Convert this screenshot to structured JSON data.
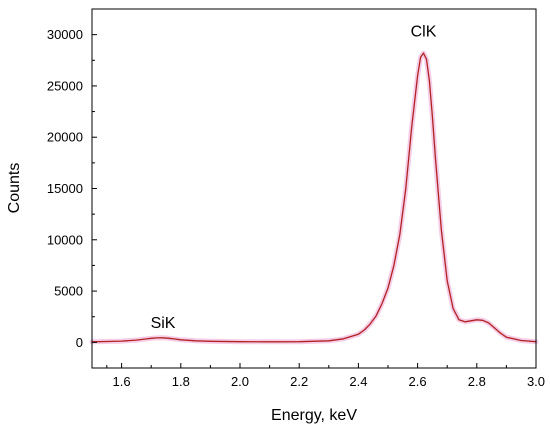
{
  "chart_data": {
    "type": "line",
    "title": "",
    "xlabel": "Energy, keV",
    "ylabel": "Counts",
    "xlim": [
      1.5,
      3.0
    ],
    "ylim": [
      -2500,
      32500
    ],
    "x_ticks": [
      1.6,
      1.8,
      2.0,
      2.2,
      2.4,
      2.6,
      2.8,
      3.0
    ],
    "x_tick_labels": [
      "1.6",
      "1.8",
      "2.0",
      "2.2",
      "2.4",
      "2.6",
      "2.8",
      "3.0"
    ],
    "y_ticks": [
      0,
      5000,
      10000,
      15000,
      20000,
      25000,
      30000
    ],
    "y_tick_labels": [
      "0",
      "5000",
      "10000",
      "15000",
      "20000",
      "25000",
      "30000"
    ],
    "grid": false,
    "legend": "none",
    "line_color": "#b22222",
    "glow_color": "#f4c8e4",
    "annotations": [
      {
        "text": "SiK",
        "x": 1.74,
        "y": 1400
      },
      {
        "text": "ClK",
        "x": 2.62,
        "y": 29800
      }
    ],
    "series": [
      {
        "x": [
          1.5,
          1.55,
          1.6,
          1.65,
          1.68,
          1.7,
          1.72,
          1.74,
          1.76,
          1.78,
          1.8,
          1.85,
          1.9,
          2.0,
          2.1,
          2.2,
          2.3,
          2.35,
          2.4,
          2.42,
          2.44,
          2.46,
          2.48,
          2.5,
          2.52,
          2.54,
          2.56,
          2.58,
          2.6,
          2.61,
          2.62,
          2.63,
          2.64,
          2.65,
          2.66,
          2.68,
          2.7,
          2.72,
          2.74,
          2.76,
          2.78,
          2.8,
          2.82,
          2.84,
          2.86,
          2.88,
          2.9,
          2.95,
          3.0
        ],
        "y": [
          50,
          80,
          120,
          220,
          330,
          400,
          430,
          440,
          400,
          330,
          250,
          150,
          100,
          60,
          50,
          60,
          150,
          350,
          800,
          1200,
          1800,
          2600,
          3800,
          5300,
          7500,
          10500,
          15000,
          21000,
          26000,
          27800,
          28200,
          27600,
          25500,
          22000,
          18000,
          11000,
          6000,
          3300,
          2200,
          2000,
          2100,
          2200,
          2150,
          1900,
          1400,
          900,
          500,
          180,
          60
        ]
      }
    ]
  }
}
